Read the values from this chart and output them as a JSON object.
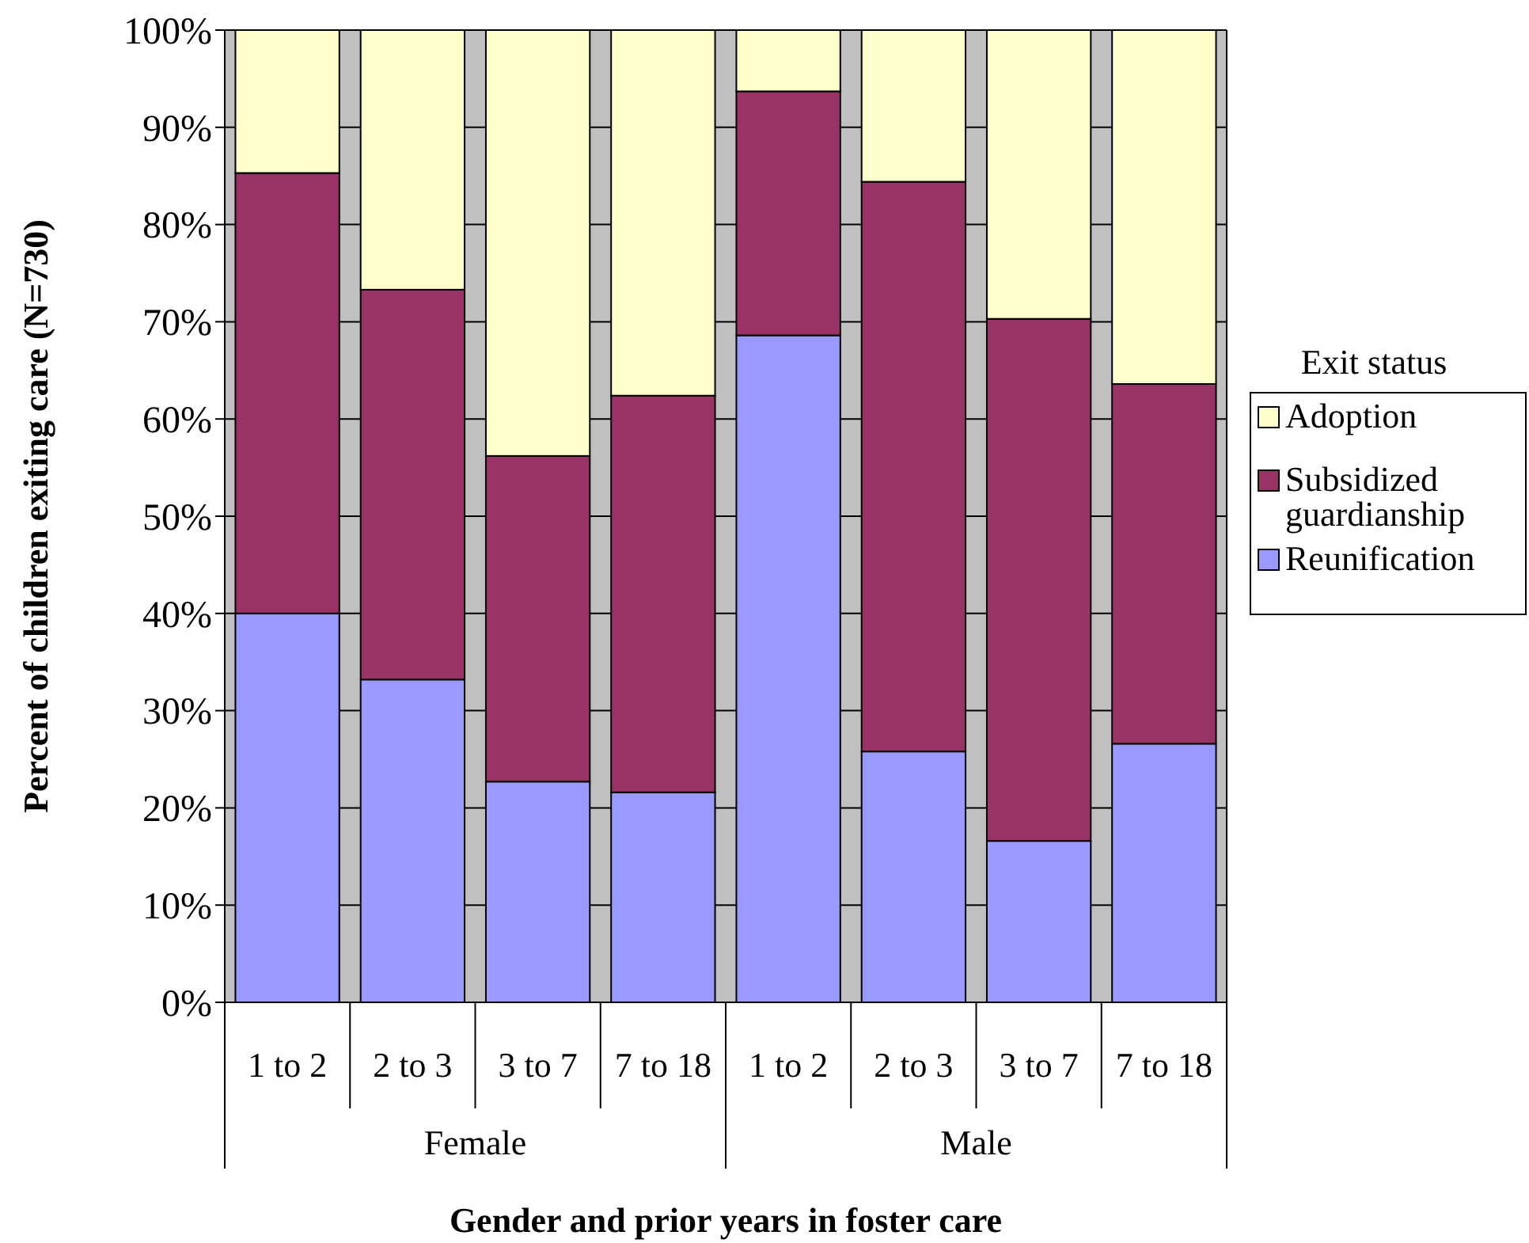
{
  "chart_data": {
    "type": "bar",
    "stacked": true,
    "xlabel": "Gender and prior years in foster care",
    "ylabel": "Percent of children exiting care (N=730)",
    "legend_title": "Exit status",
    "legend": "right",
    "grid": "y",
    "categories": [
      "1 to 2",
      "2 to 3",
      "3 to 7",
      "7 to 18",
      "1 to 2",
      "2 to 3",
      "3 to 7",
      "7 to 18"
    ],
    "annotations": [
      "Female",
      "Male"
    ],
    "ylim": [
      0,
      100
    ],
    "yticks": [
      {
        "value": 0,
        "label": "0%"
      },
      {
        "value": 10,
        "label": "10%"
      },
      {
        "value": 20,
        "label": "20%"
      },
      {
        "value": 30,
        "label": "30%"
      },
      {
        "value": 40,
        "label": "40%"
      },
      {
        "value": 50,
        "label": "50%"
      },
      {
        "value": 60,
        "label": "60%"
      },
      {
        "value": 70,
        "label": "70%"
      },
      {
        "value": 80,
        "label": "80%"
      },
      {
        "value": 90,
        "label": "90%"
      },
      {
        "value": 100,
        "label": "100%"
      }
    ],
    "series": [
      {
        "name": "Reunification",
        "color": "#9999ff",
        "values": [
          40,
          33.2,
          22.7,
          21.6,
          68.6,
          25.8,
          16.6,
          26.6
        ]
      },
      {
        "name": "Subsidized guardianship",
        "color": "#993366",
        "values": [
          45.3,
          40.1,
          33.5,
          40.8,
          25.1,
          58.6,
          53.7,
          37
        ]
      },
      {
        "name": "Adoption",
        "color": "#ffffcc",
        "values": [
          14.7,
          26.7,
          43.8,
          37.6,
          6.3,
          15.6,
          29.7,
          36.4
        ]
      }
    ]
  }
}
